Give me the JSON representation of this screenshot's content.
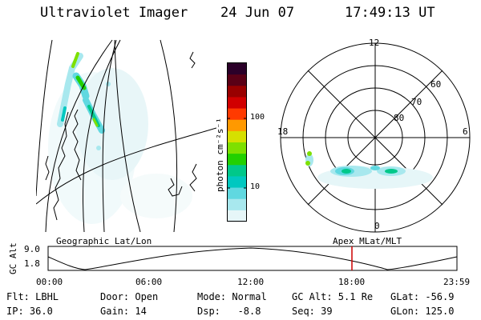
{
  "header": {
    "instrument": "Ultraviolet Imager",
    "date": "24 Jun 07",
    "time": "17:49:13 UT"
  },
  "colorbar": {
    "units": "photon cm⁻²s⁻¹",
    "ticks": [
      "100",
      "10"
    ],
    "colors": [
      "#2b0029",
      "#5a0016",
      "#990000",
      "#d10000",
      "#ff3a00",
      "#ff9900",
      "#d6e000",
      "#7ee000",
      "#22d000",
      "#00c88a",
      "#00c8c0",
      "#60d8e0",
      "#a8e8ee",
      "#e6f6f8"
    ]
  },
  "polar": {
    "mlt_labels": {
      "top": "12",
      "left": "18",
      "right": "6",
      "bottom": "0"
    },
    "lat_labels": [
      "60",
      "70",
      "80"
    ]
  },
  "strip": {
    "left_title": "Geographic Lat/Lon",
    "right_title": "Apex MLat/MLT",
    "ylabel": "GC Alt",
    "y_ticks": [
      "9.0",
      "1.8"
    ],
    "x_ticks": [
      "00:00",
      "06:00",
      "12:00",
      "18:00",
      "23:59"
    ],
    "marker_color": "#cc0000"
  },
  "info": {
    "row1": {
      "flt": "Flt: LBHL",
      "door": "Door: Open",
      "mode": "Mode: Normal",
      "gcalt": "GC Alt: 5.1 Re",
      "glat": "GLat: -56.9"
    },
    "row2": {
      "ip": "IP: 36.0",
      "gain": "Gain: 14",
      "dsp": "Dsp:   -8.8",
      "seq": "Seq: 39",
      "glon": "GLon: 125.0"
    }
  }
}
